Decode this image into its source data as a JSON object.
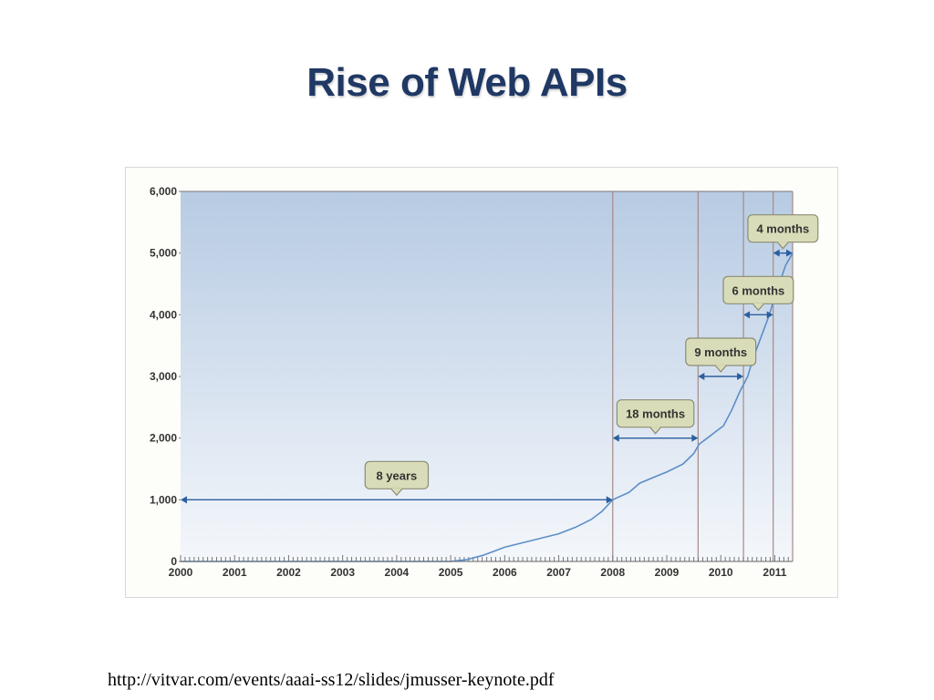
{
  "slide": {
    "title": "Rise of Web APIs",
    "source_url": "http://vitvar.com/events/aaai-ss12/slides/jmusser-keynote.pdf"
  },
  "colors": {
    "title": "#1f3864",
    "plot_top": "#b7cbe3",
    "plot_bottom": "#f4f7fb",
    "line": "#5b8ec7",
    "arrow": "#2c5f9e",
    "vline": "#a58a86",
    "callout_fill": "#d9dcb8",
    "callout_stroke": "#8c8c74"
  },
  "chart_data": {
    "type": "line",
    "title": "",
    "xlabel": "",
    "ylabel": "",
    "xlim": [
      2000,
      2011.33
    ],
    "ylim": [
      0,
      6000
    ],
    "grid": false,
    "x_ticks": [
      "2000",
      "2001",
      "2002",
      "2003",
      "2004",
      "2005",
      "2006",
      "2007",
      "2008",
      "2009",
      "2010",
      "2011"
    ],
    "y_ticks": [
      "0",
      "1,000",
      "2,000",
      "3,000",
      "4,000",
      "5,000",
      "6,000"
    ],
    "series": [
      {
        "x": [
          2000,
          2005.0,
          2005.3,
          2005.6,
          2006.0,
          2006.5,
          2007.0,
          2007.3,
          2007.6,
          2007.8,
          2008.0,
          2008.3,
          2008.5,
          2008.8,
          2009.0,
          2009.3,
          2009.5,
          2009.6,
          2009.75,
          2009.9,
          2010.05,
          2010.2,
          2010.35,
          2010.5,
          2010.6,
          2010.75,
          2010.9,
          2011.0,
          2011.1,
          2011.2,
          2011.33
        ],
        "y": [
          0,
          0,
          30,
          100,
          230,
          340,
          450,
          550,
          680,
          810,
          1000,
          1120,
          1270,
          1380,
          1450,
          1580,
          1750,
          1900,
          2000,
          2100,
          2200,
          2450,
          2750,
          3000,
          3300,
          3650,
          4000,
          4300,
          4550,
          4800,
          5000
        ]
      }
    ],
    "milestones": [
      {
        "year": 2008.0,
        "value": 1000
      },
      {
        "year": 2009.58,
        "value": 2000
      },
      {
        "year": 2010.42,
        "value": 3000
      },
      {
        "year": 2010.97,
        "value": 4000
      },
      {
        "year": 2011.33,
        "value": 5000
      }
    ],
    "annotations": [
      {
        "label": "8 years",
        "x_from": 2000,
        "x_to": 2008.0,
        "y": 1000
      },
      {
        "label": "18 months",
        "x_from": 2008.0,
        "x_to": 2009.58,
        "y": 2000
      },
      {
        "label": "9 months",
        "x_from": 2009.58,
        "x_to": 2010.42,
        "y": 3000
      },
      {
        "label": "6 months",
        "x_from": 2010.42,
        "x_to": 2010.97,
        "y": 4000
      },
      {
        "label": "4 months",
        "x_from": 2010.97,
        "x_to": 2011.33,
        "y": 5000
      }
    ]
  }
}
